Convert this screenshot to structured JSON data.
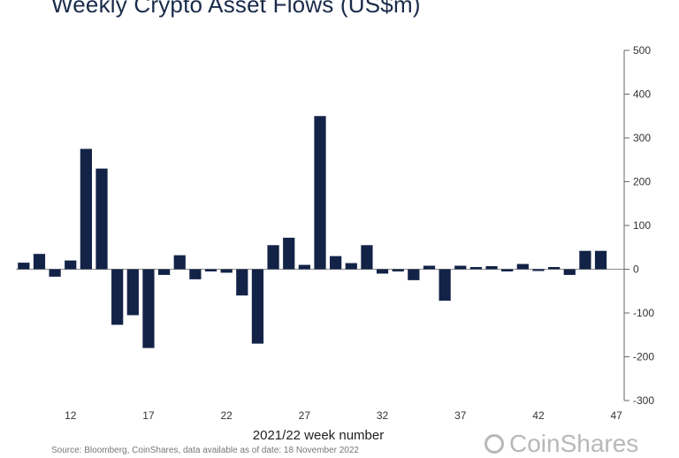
{
  "chart_data": {
    "type": "bar",
    "title": "Weekly Crypto Asset Flows (US$m)",
    "xlabel": "2021/22 week number",
    "ylabel": "",
    "ylim": [
      -300,
      500
    ],
    "yticks": [
      500,
      400,
      300,
      200,
      100,
      0,
      -100,
      -200,
      -300
    ],
    "x_tick_labels": [
      {
        "week": 12,
        "label": "12"
      },
      {
        "week": 17,
        "label": "17"
      },
      {
        "week": 22,
        "label": "22"
      },
      {
        "week": 27,
        "label": "27"
      },
      {
        "week": 32,
        "label": "32"
      },
      {
        "week": 37,
        "label": "37"
      },
      {
        "week": 42,
        "label": "42"
      },
      {
        "week": 47,
        "label": "47"
      }
    ],
    "weeks": [
      9,
      10,
      11,
      12,
      13,
      14,
      15,
      16,
      17,
      18,
      19,
      20,
      21,
      22,
      23,
      24,
      25,
      26,
      27,
      28,
      29,
      30,
      31,
      32,
      33,
      34,
      35,
      36,
      37,
      38,
      39,
      40,
      41,
      42,
      43,
      44,
      45,
      46,
      47
    ],
    "values": [
      15,
      35,
      -17,
      20,
      275,
      230,
      -127,
      -105,
      -180,
      -13,
      32,
      -23,
      -5,
      -8,
      -60,
      -170,
      55,
      72,
      10,
      350,
      30,
      14,
      55,
      -10,
      -5,
      -25,
      8,
      -72,
      8,
      5,
      7,
      -5,
      12,
      -4,
      5,
      -13,
      42,
      42,
      0
    ],
    "bar_color": "#132347",
    "grid": false,
    "y_axis_side": "right"
  },
  "source_note": "Source: Bloomberg, CoinShares, data available as of date: 18 November 2022",
  "brand": {
    "name": "CoinShares",
    "logo_icon": "coinshares-logo-icon",
    "color": "#b8b8b8"
  }
}
